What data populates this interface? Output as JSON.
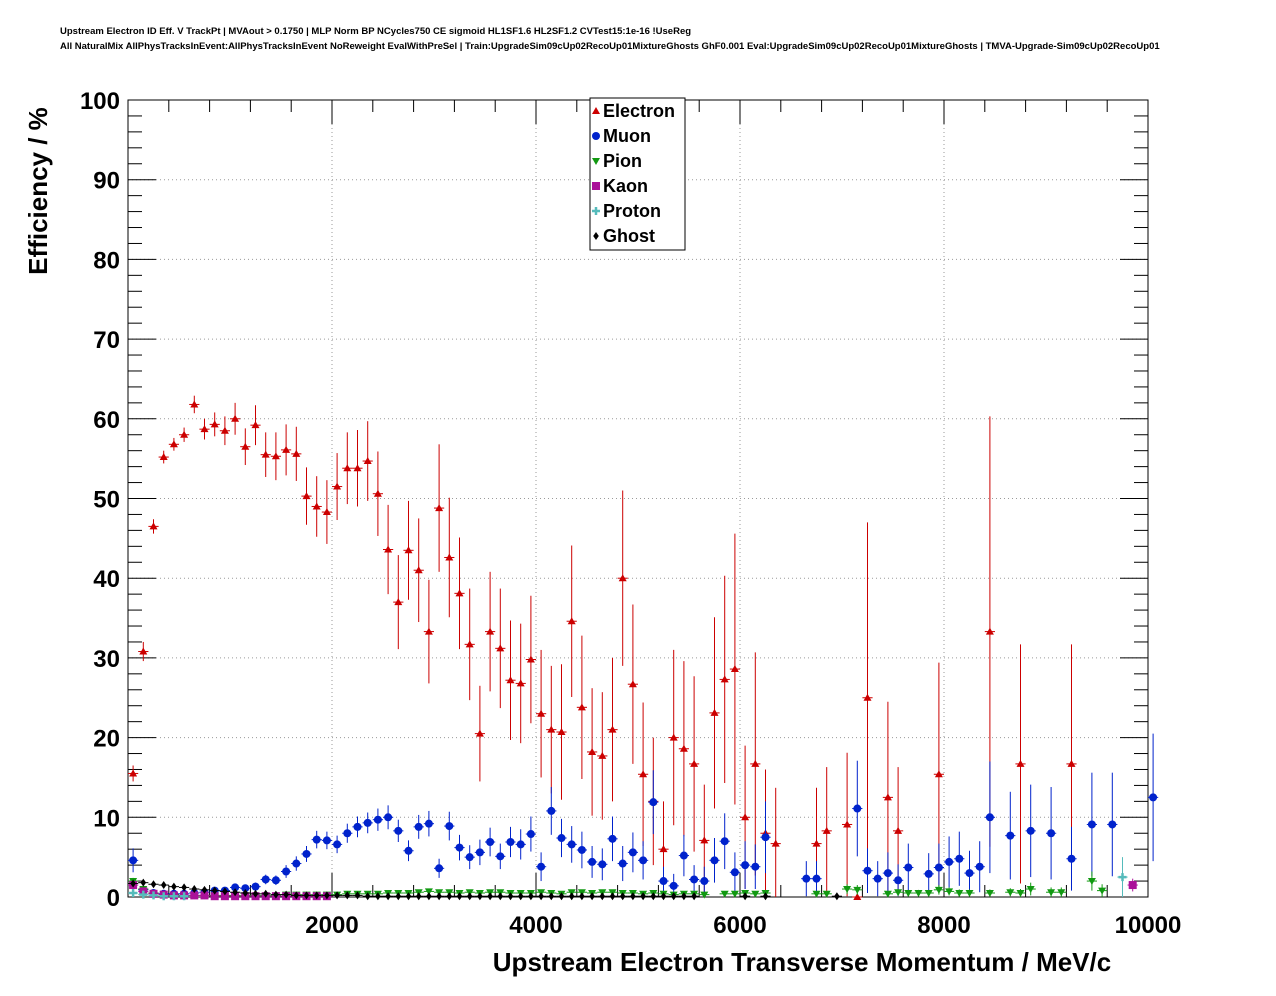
{
  "header": {
    "title_line1": "Upstream Electron ID Eff. V TrackPt | MVAout > 0.1750 | MLP Norm BP NCycles750 CE sigmoid HL1SF1.6 HL2SF1.2 CVTest15:1e-16 !UseReg",
    "title_line2": "All NaturalMix AllPhysTracksInEvent:AllPhysTracksInEvent NoReweight EvalWithPreSel | Train:UpgradeSim09cUp02RecoUp01MixtureGhosts GhF0.001 Eval:UpgradeSim09cUp02RecoUp01MixtureGhosts | TMVA-Upgrade-Sim09cUp02RecoUp01"
  },
  "chart_data": {
    "type": "scatter",
    "xlabel": "Upstream Electron Transverse Momentum / MeV/c",
    "ylabel": "Efficiency / %",
    "xlim": [
      0,
      10000
    ],
    "ylim": [
      0,
      100
    ],
    "xticks": [
      2000,
      4000,
      6000,
      8000,
      10000
    ],
    "yticks": [
      0,
      10,
      20,
      30,
      40,
      50,
      60,
      70,
      80,
      90,
      100
    ],
    "grid": true,
    "legend_position": "top-center",
    "series": [
      {
        "name": "Electron",
        "color": "#cc0000",
        "marker": "triangle-up",
        "x": [
          50,
          150,
          250,
          350,
          450,
          550,
          650,
          750,
          850,
          950,
          1050,
          1150,
          1250,
          1350,
          1450,
          1550,
          1650,
          1750,
          1850,
          1950,
          2050,
          2150,
          2250,
          2350,
          2450,
          2550,
          2650,
          2750,
          2850,
          2950,
          3050,
          3150,
          3250,
          3350,
          3450,
          3550,
          3650,
          3750,
          3850,
          3950,
          4050,
          4150,
          4250,
          4350,
          4450,
          4550,
          4650,
          4750,
          4850,
          4950,
          5050,
          5150,
          5250,
          5350,
          5450,
          5550,
          5650,
          5750,
          5850,
          5950,
          6050,
          6150,
          6250,
          6350,
          6750,
          6850,
          7050,
          7150,
          7250,
          7450,
          7550,
          7950,
          8450,
          8750,
          9250
        ],
        "y": [
          15.5,
          30.8,
          46.5,
          55.2,
          56.8,
          58.0,
          61.8,
          58.7,
          59.3,
          58.5,
          60.0,
          56.5,
          59.2,
          55.5,
          55.3,
          56.1,
          55.6,
          50.3,
          49.0,
          48.3,
          51.5,
          53.8,
          53.8,
          54.7,
          50.6,
          43.6,
          37.0,
          43.5,
          41.0,
          33.3,
          48.8,
          42.6,
          38.1,
          31.7,
          20.5,
          33.3,
          31.2,
          27.2,
          26.8,
          29.8,
          23.0,
          21.0,
          20.7,
          34.6,
          23.8,
          18.2,
          17.7,
          21.0,
          40.0,
          26.7,
          15.4,
          12.0,
          6.0,
          20.0,
          18.6,
          16.7,
          7.1,
          23.1,
          27.3,
          28.6,
          10.0,
          16.7,
          8.0,
          6.7,
          6.7,
          8.3,
          9.1,
          0,
          25.0,
          12.5,
          8.3,
          15.4,
          33.3,
          16.7,
          16.7
        ],
        "err": [
          1.0,
          1.2,
          0.9,
          0.8,
          0.8,
          0.9,
          1.1,
          1.3,
          1.5,
          1.8,
          2.0,
          2.3,
          2.5,
          2.8,
          3.0,
          3.2,
          3.4,
          3.6,
          3.8,
          4.0,
          4.2,
          4.5,
          4.8,
          5.0,
          5.3,
          5.6,
          5.9,
          6.2,
          6.5,
          6.5,
          8.0,
          7.5,
          7.0,
          7.0,
          6.0,
          7.5,
          7.5,
          7.5,
          7.5,
          8.0,
          8.0,
          8.0,
          8.5,
          9.5,
          9.0,
          8.0,
          8.0,
          9.0,
          11.0,
          10.0,
          9.0,
          8.0,
          6.0,
          11.0,
          11.0,
          11.0,
          7.0,
          12.0,
          13.0,
          17.0,
          9.0,
          14.0,
          8.0,
          7.0,
          7.0,
          8.0,
          9.0,
          0,
          22.0,
          12.0,
          8.0,
          14.0,
          27.0,
          15.0,
          15.0
        ]
      },
      {
        "name": "Muon",
        "color": "#0022cc",
        "marker": "circle",
        "x": [
          50,
          150,
          250,
          350,
          450,
          550,
          650,
          750,
          850,
          950,
          1050,
          1150,
          1250,
          1350,
          1450,
          1550,
          1650,
          1750,
          1850,
          1950,
          2050,
          2150,
          2250,
          2350,
          2450,
          2550,
          2650,
          2750,
          2850,
          2950,
          3050,
          3150,
          3250,
          3350,
          3450,
          3550,
          3650,
          3750,
          3850,
          3950,
          4050,
          4150,
          4250,
          4350,
          4450,
          4550,
          4650,
          4750,
          4850,
          4950,
          5050,
          5150,
          5250,
          5350,
          5450,
          5550,
          5650,
          5750,
          5850,
          5950,
          6050,
          6150,
          6250,
          6650,
          6750,
          7150,
          7250,
          7350,
          7450,
          7550,
          7650,
          7850,
          7950,
          8050,
          8150,
          8250,
          8350,
          8450,
          8650,
          8850,
          9050,
          9250,
          9450,
          9650,
          10050
        ],
        "y": [
          4.6,
          0.9,
          0.5,
          0.4,
          0.4,
          0.4,
          0.5,
          0.6,
          0.8,
          0.8,
          1.2,
          1.1,
          1.3,
          2.2,
          2.1,
          3.2,
          4.2,
          5.4,
          7.2,
          7.1,
          6.6,
          8.0,
          8.8,
          9.3,
          9.7,
          10.0,
          8.3,
          5.8,
          8.8,
          9.2,
          3.6,
          8.9,
          6.2,
          5.0,
          5.6,
          6.9,
          5.1,
          6.9,
          6.6,
          7.9,
          3.8,
          10.8,
          7.4,
          6.6,
          5.9,
          4.4,
          4.1,
          7.3,
          4.2,
          5.6,
          4.6,
          11.9,
          2.0,
          1.4,
          5.2,
          2.2,
          2.0,
          4.6,
          7.0,
          3.1,
          4.0,
          3.8,
          7.5,
          2.3,
          2.3,
          11.1,
          3.3,
          2.3,
          3.0,
          2.1,
          3.7,
          2.9,
          3.7,
          4.4,
          4.8,
          3.0,
          3.8,
          10.0,
          7.7,
          8.3,
          8.0,
          4.8,
          9.1,
          9.1,
          12.5
        ],
        "err": [
          1.5,
          0.4,
          0.2,
          0.15,
          0.15,
          0.15,
          0.2,
          0.2,
          0.3,
          0.3,
          0.4,
          0.4,
          0.5,
          0.6,
          0.6,
          0.8,
          0.9,
          1.0,
          1.1,
          1.1,
          1.1,
          1.2,
          1.3,
          1.3,
          1.4,
          1.5,
          1.4,
          1.3,
          1.5,
          1.6,
          1.2,
          1.8,
          1.6,
          1.5,
          1.6,
          1.8,
          1.6,
          1.9,
          1.9,
          2.2,
          1.8,
          3.0,
          2.4,
          2.3,
          2.3,
          2.0,
          2.0,
          2.8,
          2.2,
          2.5,
          2.4,
          4.0,
          1.8,
          1.5,
          2.6,
          1.8,
          1.8,
          2.8,
          3.5,
          2.5,
          3.0,
          2.8,
          4.5,
          2.2,
          2.2,
          6.0,
          2.8,
          2.2,
          2.6,
          2.0,
          3.0,
          2.6,
          3.0,
          3.2,
          3.4,
          2.8,
          3.2,
          7.0,
          5.5,
          5.8,
          5.8,
          4.0,
          6.5,
          6.5,
          8.0
        ]
      },
      {
        "name": "Pion",
        "color": "#119911",
        "marker": "triangle-down",
        "x": [
          50,
          150,
          250,
          350,
          450,
          550,
          650,
          750,
          850,
          950,
          1050,
          1150,
          1250,
          1350,
          1450,
          1550,
          1650,
          1750,
          1850,
          1950,
          2050,
          2150,
          2250,
          2350,
          2450,
          2550,
          2650,
          2750,
          2850,
          2950,
          3050,
          3150,
          3250,
          3350,
          3450,
          3550,
          3650,
          3750,
          3850,
          3950,
          4050,
          4150,
          4250,
          4350,
          4450,
          4550,
          4650,
          4750,
          4850,
          4950,
          5050,
          5150,
          5250,
          5350,
          5450,
          5550,
          5650,
          5850,
          5950,
          6050,
          6150,
          6250,
          6750,
          6850,
          7050,
          7150,
          7450,
          7550,
          7650,
          7750,
          7850,
          7950,
          8050,
          8150,
          8250,
          8450,
          8650,
          8750,
          8850,
          9050,
          9150,
          9450,
          9550
        ],
        "y": [
          2.0,
          1.0,
          0.5,
          0.3,
          0.3,
          0.2,
          0.2,
          0.2,
          0.2,
          0.2,
          0.2,
          0.2,
          0.2,
          0.2,
          0.2,
          0.3,
          0.3,
          0.3,
          0.3,
          0.3,
          0.3,
          0.4,
          0.4,
          0.4,
          0.4,
          0.5,
          0.5,
          0.5,
          0.6,
          0.7,
          0.6,
          0.6,
          0.5,
          0.6,
          0.5,
          0.6,
          0.6,
          0.5,
          0.5,
          0.5,
          0.6,
          0.5,
          0.4,
          0.6,
          0.6,
          0.5,
          0.6,
          0.6,
          0.5,
          0.5,
          0.4,
          0.5,
          0.4,
          0.3,
          0.4,
          0.4,
          0.3,
          0.4,
          0.4,
          0.5,
          0.4,
          0.5,
          0.4,
          0.4,
          1.0,
          0.9,
          0.4,
          0.6,
          0.5,
          0.5,
          0.5,
          0.9,
          0.7,
          0.5,
          0.5,
          0.5,
          0.6,
          0.5,
          1.0,
          0.6,
          0.6,
          2.0,
          0.8
        ],
        "err": [
          0.4,
          0.2,
          0.1,
          0.05,
          0.05,
          0.05,
          0.05,
          0.05,
          0.05,
          0.05,
          0.05,
          0.05,
          0.05,
          0.05,
          0.05,
          0.05,
          0.05,
          0.05,
          0.05,
          0.06,
          0.06,
          0.07,
          0.07,
          0.07,
          0.08,
          0.09,
          0.09,
          0.1,
          0.1,
          0.12,
          0.12,
          0.12,
          0.12,
          0.13,
          0.13,
          0.14,
          0.14,
          0.14,
          0.15,
          0.15,
          0.16,
          0.16,
          0.16,
          0.18,
          0.18,
          0.18,
          0.2,
          0.2,
          0.2,
          0.2,
          0.2,
          0.2,
          0.2,
          0.2,
          0.2,
          0.2,
          0.2,
          0.25,
          0.25,
          0.3,
          0.3,
          0.3,
          0.3,
          0.3,
          0.6,
          0.6,
          0.35,
          0.4,
          0.4,
          0.4,
          0.4,
          0.6,
          0.5,
          0.45,
          0.45,
          0.45,
          0.5,
          0.5,
          0.8,
          0.6,
          0.6,
          1.2,
          0.8
        ]
      },
      {
        "name": "Kaon",
        "color": "#aa1199",
        "marker": "square",
        "x": [
          50,
          150,
          250,
          350,
          450,
          550,
          650,
          750,
          850,
          950,
          1050,
          1150,
          1250,
          1350,
          1450,
          1550,
          1650,
          1750,
          1850,
          1950,
          9850
        ],
        "y": [
          1.5,
          0.7,
          0.4,
          0.3,
          0.2,
          0.2,
          0.2,
          0.2,
          0.1,
          0.1,
          0.1,
          0.1,
          0.1,
          0.1,
          0.1,
          0.1,
          0.1,
          0.1,
          0.1,
          0.1,
          1.5
        ],
        "err": [
          0.5,
          0.2,
          0.1,
          0.08,
          0.06,
          0.06,
          0.06,
          0.05,
          0.05,
          0.05,
          0.05,
          0.05,
          0.05,
          0.05,
          0.05,
          0.05,
          0.05,
          0.05,
          0.05,
          0.05,
          0.8
        ]
      },
      {
        "name": "Proton",
        "color": "#55bbbb",
        "marker": "plus",
        "x": [
          50,
          150,
          250,
          350,
          450,
          550,
          9750
        ],
        "y": [
          0.5,
          0.3,
          0.2,
          0.1,
          0.1,
          0.1,
          2.5
        ],
        "err": [
          0.3,
          0.15,
          0.1,
          0.05,
          0.05,
          0.05,
          2.5
        ]
      },
      {
        "name": "Ghost",
        "color": "#000000",
        "marker": "diamond",
        "x": [
          50,
          150,
          250,
          350,
          450,
          550,
          650,
          750,
          850,
          950,
          1050,
          1150,
          1250,
          1350,
          1450,
          1550,
          1650,
          1750,
          1850,
          1950,
          2050,
          2150,
          2250,
          2350,
          2450,
          2550,
          2650,
          2750,
          2850,
          2950,
          3050,
          3150,
          3250,
          3350,
          3450,
          3550,
          3650,
          3750,
          3850,
          3950,
          4050,
          4150,
          4250,
          4350,
          4450,
          4550,
          4650,
          4750,
          4850,
          4950,
          5050,
          5150,
          5250,
          5350,
          5450,
          5550,
          6050,
          6250,
          6950
        ],
        "y": [
          1.7,
          1.8,
          1.6,
          1.5,
          1.3,
          1.2,
          1.0,
          0.9,
          0.8,
          0.7,
          0.6,
          0.5,
          0.4,
          0.4,
          0.3,
          0.3,
          0.2,
          0.2,
          0.2,
          0.2,
          0.2,
          0.2,
          0.2,
          0.1,
          0.1,
          0.1,
          0.1,
          0.1,
          0.1,
          0.1,
          0.1,
          0.1,
          0.1,
          0.1,
          0.1,
          0.1,
          0.1,
          0.1,
          0.1,
          0.1,
          0.1,
          0.1,
          0.1,
          0.1,
          0.1,
          0.1,
          0.1,
          0.1,
          0.1,
          0.1,
          0.1,
          0.1,
          0.1,
          0.1,
          0.1,
          0.1,
          0.1,
          0.1,
          0.1
        ],
        "err": [
          0.2,
          0.15,
          0.12,
          0.1,
          0.1,
          0.08,
          0.08,
          0.07,
          0.07,
          0.06,
          0.06,
          0.05,
          0.05,
          0.05,
          0.05,
          0.05,
          0.05,
          0.05,
          0.05,
          0.05,
          0.05,
          0.05,
          0.05,
          0.05,
          0.05,
          0.05,
          0.05,
          0.05,
          0.05,
          0.05,
          0.05,
          0.05,
          0.05,
          0.05,
          0.05,
          0.05,
          0.05,
          0.05,
          0.05,
          0.05,
          0.05,
          0.05,
          0.05,
          0.05,
          0.05,
          0.05,
          0.05,
          0.05,
          0.05,
          0.05,
          0.05,
          0.05,
          0.05,
          0.05,
          0.05,
          0.05,
          0.05,
          0.05,
          0.05
        ]
      }
    ]
  }
}
